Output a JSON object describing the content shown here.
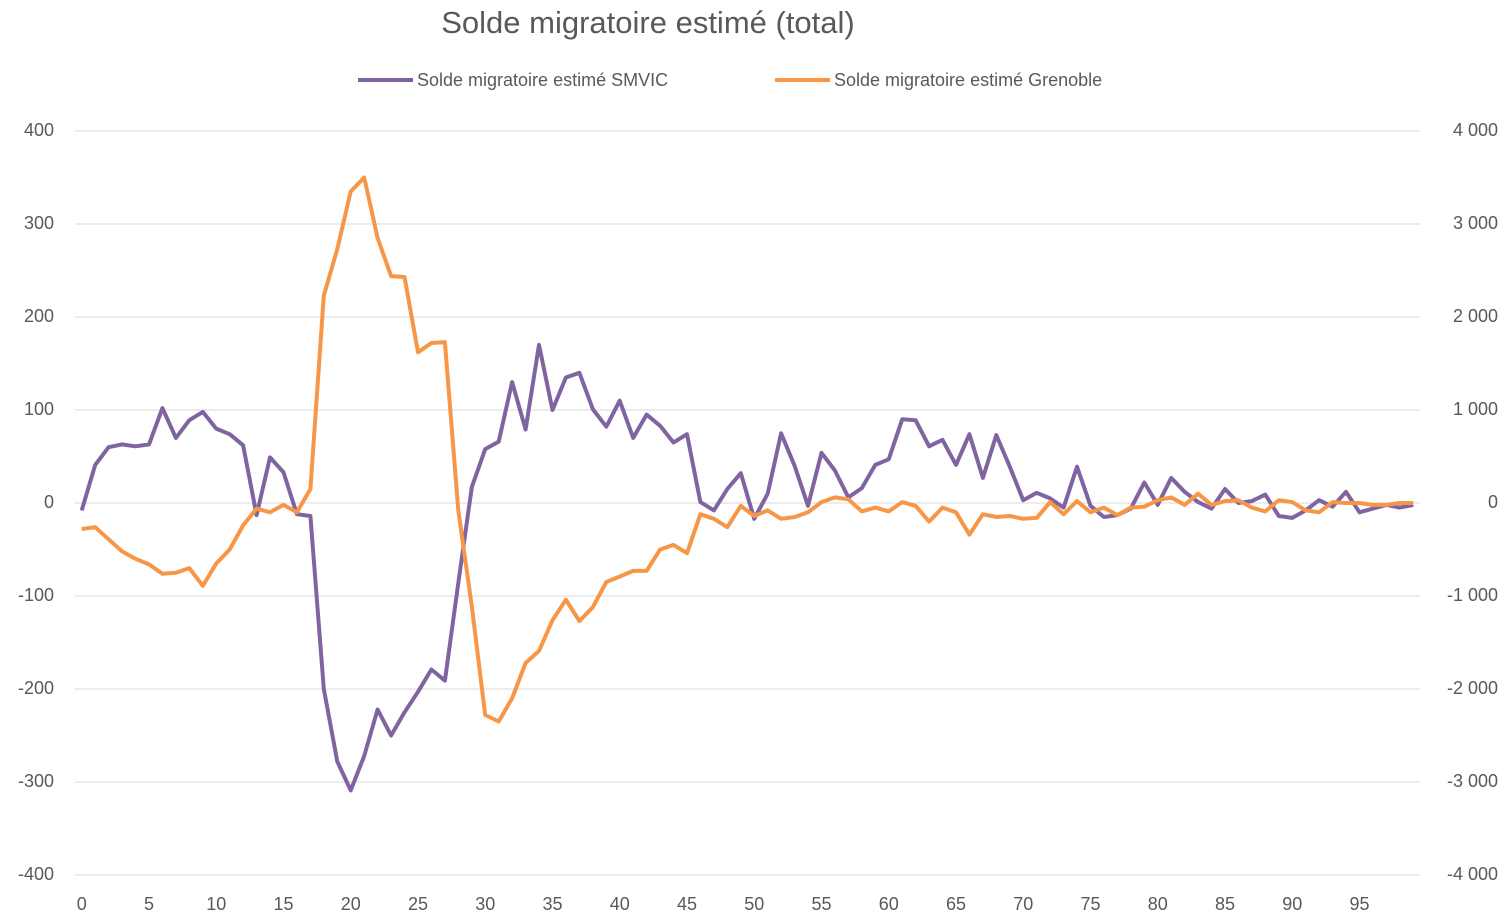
{
  "chart_data": {
    "type": "line",
    "title": "Solde migratoire estimé (total)",
    "x": [
      0,
      1,
      2,
      3,
      4,
      5,
      6,
      7,
      8,
      9,
      10,
      11,
      12,
      13,
      14,
      15,
      16,
      17,
      18,
      19,
      20,
      21,
      22,
      23,
      24,
      25,
      26,
      27,
      28,
      29,
      30,
      31,
      32,
      33,
      34,
      35,
      36,
      37,
      38,
      39,
      40,
      41,
      42,
      43,
      44,
      45,
      46,
      47,
      48,
      49,
      50,
      51,
      52,
      53,
      54,
      55,
      56,
      57,
      58,
      59,
      60,
      61,
      62,
      63,
      64,
      65,
      66,
      67,
      68,
      69,
      70,
      71,
      72,
      73,
      74,
      75,
      76,
      77,
      78,
      79,
      80,
      81,
      82,
      83,
      84,
      85,
      86,
      87,
      88,
      89,
      90,
      91,
      92,
      93,
      94,
      95,
      96,
      97,
      98,
      99
    ],
    "series": [
      {
        "name": "Solde migratoire estimé SMVIC",
        "color": "#8064a2",
        "axis": "y",
        "values": [
          -8,
          41,
          60,
          63,
          61,
          63,
          102,
          70,
          89,
          98,
          80,
          74,
          62,
          -13,
          49,
          33,
          -12,
          -14,
          -200,
          -278,
          -309,
          -272,
          -222,
          -250,
          -225,
          -203,
          -179,
          -191,
          -86,
          17,
          58,
          66,
          130,
          79,
          170,
          100,
          135,
          140,
          101,
          82,
          110,
          70,
          95,
          83,
          65,
          74,
          1,
          -8,
          15,
          32,
          -17,
          10,
          75,
          40,
          -3,
          54,
          35,
          6,
          16,
          41,
          47,
          90,
          89,
          61,
          68,
          41,
          74,
          27,
          73,
          39,
          3,
          11,
          5,
          -5,
          39,
          -3,
          -15,
          -13,
          -6,
          22,
          -2,
          27,
          12,
          1,
          -6,
          15,
          0,
          2,
          9,
          -14,
          -16,
          -8,
          3,
          -4,
          12,
          -10,
          -6,
          -2,
          -5,
          -2
        ]
      },
      {
        "name": "Solde migratoire estimé Grenoble",
        "color": "#f79646",
        "axis": "y2",
        "values": [
          -280,
          -260,
          -390,
          -520,
          -600,
          -660,
          -760,
          -750,
          -700,
          -890,
          -650,
          -500,
          -240,
          -60,
          -100,
          -20,
          -100,
          150,
          2230,
          2730,
          3350,
          3500,
          2850,
          2440,
          2430,
          1620,
          1720,
          1730,
          -80,
          -1110,
          -2280,
          -2350,
          -2100,
          -1720,
          -1590,
          -1260,
          -1040,
          -1270,
          -1120,
          -850,
          -790,
          -730,
          -730,
          -500,
          -450,
          -540,
          -120,
          -170,
          -260,
          -30,
          -140,
          -80,
          -170,
          -150,
          -100,
          10,
          60,
          40,
          -90,
          -50,
          -90,
          10,
          -30,
          -200,
          -50,
          -100,
          -340,
          -120,
          -150,
          -140,
          -170,
          -160,
          10,
          -120,
          20,
          -100,
          -50,
          -130,
          -50,
          -40,
          30,
          60,
          -20,
          100,
          -20,
          20,
          30,
          -50,
          -90,
          30,
          10,
          -80,
          -100,
          10,
          0,
          0,
          -20,
          -20,
          0,
          0
        ]
      }
    ],
    "xlim": [
      -0.5,
      99.5
    ],
    "xticks": [
      0,
      5,
      10,
      15,
      20,
      25,
      30,
      35,
      40,
      45,
      50,
      55,
      60,
      65,
      70,
      75,
      80,
      85,
      90,
      95
    ],
    "ylim": [
      -400,
      400
    ],
    "yticks": [
      -400,
      -300,
      -200,
      -100,
      0,
      100,
      200,
      300,
      400
    ],
    "y2lim": [
      -4000,
      4000
    ],
    "y2ticks": [
      {
        "value": -4000,
        "label": "-4 000"
      },
      {
        "value": -3000,
        "label": "-3 000"
      },
      {
        "value": -2000,
        "label": "-2 000"
      },
      {
        "value": -1000,
        "label": "-1 000"
      },
      0,
      {
        "value": 1000,
        "label": "1 000"
      },
      {
        "value": 2000,
        "label": "2 000"
      },
      {
        "value": 3000,
        "label": "3 000"
      },
      {
        "value": 4000,
        "label": "4 000"
      }
    ],
    "grid": true,
    "legend": "top"
  }
}
